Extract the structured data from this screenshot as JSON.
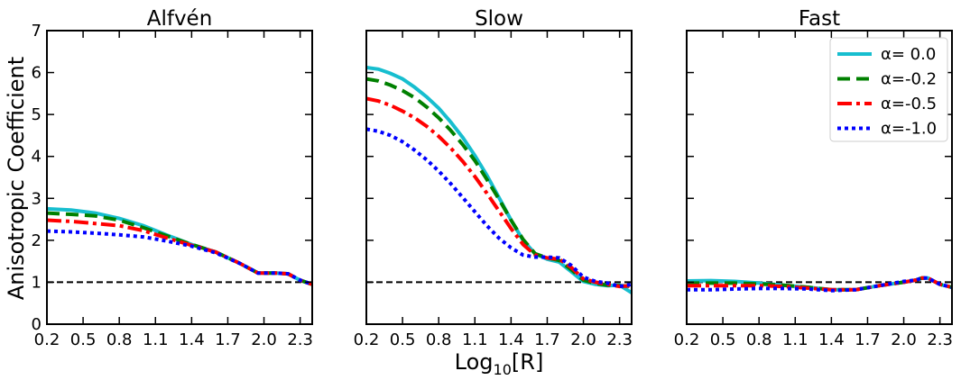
{
  "chart_data": {
    "type": "line",
    "ylabel": "Anisotropic Coefficient",
    "xlabel_base": "Log",
    "xlabel_sub": "10",
    "xlabel_rest": "[R]",
    "xlim": [
      0.2,
      2.4
    ],
    "ylim": [
      0,
      7
    ],
    "xticks": [
      0.2,
      0.5,
      0.8,
      1.1,
      1.4,
      1.7,
      2.0,
      2.3
    ],
    "xtick_labels": [
      "0.2",
      "0.5",
      "0.8",
      "1.1",
      "1.4",
      "1.7",
      "2.0",
      "2.3"
    ],
    "yticks": [
      0,
      1,
      2,
      3,
      4,
      5,
      6,
      7
    ],
    "ytick_labels": [
      "0",
      "1",
      "2",
      "3",
      "4",
      "5",
      "6",
      "7"
    ],
    "reference_line": 1,
    "legend_position": "top-right of Fast panel",
    "series_styles": [
      {
        "color": "#17becf",
        "dash": "none",
        "label": "α= 0.0"
      },
      {
        "color": "#008000",
        "dash": "14,7",
        "label": "α=-0.2"
      },
      {
        "color": "#ff0000",
        "dash": "16,5,4,5",
        "label": "α=-0.5"
      },
      {
        "color": "#0000ff",
        "dash": "4,4",
        "label": "α=-1.0"
      }
    ],
    "panels": [
      {
        "title": "Alfvén",
        "series": [
          {
            "x": [
              0.2,
              0.4,
              0.6,
              0.8,
              1.0,
              1.2,
              1.4,
              1.6,
              1.8,
              1.95,
              2.1,
              2.2,
              2.3,
              2.4
            ],
            "y": [
              2.75,
              2.72,
              2.65,
              2.52,
              2.35,
              2.12,
              1.9,
              1.72,
              1.45,
              1.22,
              1.22,
              1.2,
              1.05,
              0.95
            ]
          },
          {
            "x": [
              0.2,
              0.4,
              0.6,
              0.8,
              1.0,
              1.2,
              1.4,
              1.6,
              1.8,
              1.95,
              2.1,
              2.2,
              2.3,
              2.4
            ],
            "y": [
              2.65,
              2.62,
              2.58,
              2.48,
              2.3,
              2.1,
              1.9,
              1.72,
              1.45,
              1.22,
              1.22,
              1.2,
              1.05,
              0.95
            ]
          },
          {
            "x": [
              0.2,
              0.4,
              0.6,
              0.8,
              1.0,
              1.2,
              1.4,
              1.6,
              1.8,
              1.95,
              2.1,
              2.2,
              2.3,
              2.4
            ],
            "y": [
              2.48,
              2.45,
              2.4,
              2.35,
              2.23,
              2.05,
              1.88,
              1.72,
              1.45,
              1.22,
              1.22,
              1.2,
              1.05,
              0.95
            ]
          },
          {
            "x": [
              0.2,
              0.4,
              0.6,
              0.8,
              1.0,
              1.2,
              1.4,
              1.6,
              1.8,
              1.95,
              2.1,
              2.2,
              2.3,
              2.4
            ],
            "y": [
              2.22,
              2.2,
              2.17,
              2.13,
              2.08,
              1.98,
              1.86,
              1.7,
              1.45,
              1.22,
              1.22,
              1.2,
              1.05,
              0.95
            ]
          }
        ]
      },
      {
        "title": "Slow",
        "series": [
          {
            "x": [
              0.2,
              0.3,
              0.4,
              0.5,
              0.6,
              0.7,
              0.8,
              0.9,
              1.0,
              1.1,
              1.2,
              1.3,
              1.4,
              1.5,
              1.6,
              1.7,
              1.8,
              1.9,
              2.0,
              2.1,
              2.2,
              2.3,
              2.4
            ],
            "y": [
              6.12,
              6.08,
              5.98,
              5.85,
              5.65,
              5.42,
              5.15,
              4.82,
              4.45,
              4.02,
              3.55,
              3.02,
              2.48,
              2.0,
              1.68,
              1.55,
              1.48,
              1.25,
              1.02,
              0.95,
              0.92,
              0.93,
              0.75
            ]
          },
          {
            "x": [
              0.2,
              0.3,
              0.4,
              0.5,
              0.6,
              0.7,
              0.8,
              0.9,
              1.0,
              1.1,
              1.2,
              1.3,
              1.4,
              1.5,
              1.6,
              1.7,
              1.8,
              1.9,
              2.0,
              2.1,
              2.2,
              2.3,
              2.4
            ],
            "y": [
              5.85,
              5.8,
              5.7,
              5.57,
              5.4,
              5.18,
              4.92,
              4.62,
              4.28,
              3.9,
              3.45,
              2.98,
              2.48,
              2.02,
              1.68,
              1.58,
              1.52,
              1.3,
              1.05,
              0.97,
              0.93,
              0.92,
              0.9
            ]
          },
          {
            "x": [
              0.2,
              0.3,
              0.4,
              0.5,
              0.6,
              0.7,
              0.8,
              0.9,
              1.0,
              1.1,
              1.2,
              1.3,
              1.4,
              1.5,
              1.6,
              1.7,
              1.8,
              1.9,
              2.0,
              2.1,
              2.2,
              2.3,
              2.4
            ],
            "y": [
              5.38,
              5.32,
              5.22,
              5.08,
              4.92,
              4.72,
              4.48,
              4.2,
              3.88,
              3.52,
              3.12,
              2.7,
              2.28,
              1.9,
              1.65,
              1.58,
              1.55,
              1.35,
              1.08,
              1.0,
              0.95,
              0.9,
              0.92
            ]
          },
          {
            "x": [
              0.2,
              0.3,
              0.4,
              0.5,
              0.6,
              0.7,
              0.8,
              0.9,
              1.0,
              1.1,
              1.2,
              1.3,
              1.4,
              1.5,
              1.6,
              1.7,
              1.8,
              1.9,
              2.0,
              2.1,
              2.2,
              2.3,
              2.4
            ],
            "y": [
              4.65,
              4.6,
              4.5,
              4.35,
              4.15,
              3.92,
              3.65,
              3.35,
              3.02,
              2.68,
              2.35,
              2.05,
              1.82,
              1.65,
              1.6,
              1.6,
              1.58,
              1.4,
              1.12,
              1.02,
              0.98,
              0.9,
              0.95
            ]
          }
        ]
      },
      {
        "title": "Fast",
        "series": [
          {
            "x": [
              0.2,
              0.4,
              0.6,
              0.8,
              1.0,
              1.2,
              1.4,
              1.6,
              1.8,
              2.0,
              2.1,
              2.15,
              2.2,
              2.3,
              2.4
            ],
            "y": [
              1.03,
              1.04,
              1.02,
              0.98,
              0.93,
              0.88,
              0.82,
              0.82,
              0.92,
              1.0,
              1.05,
              1.1,
              1.1,
              0.95,
              0.88
            ]
          },
          {
            "x": [
              0.2,
              0.4,
              0.6,
              0.8,
              1.0,
              1.2,
              1.4,
              1.6,
              1.8,
              2.0,
              2.1,
              2.15,
              2.2,
              2.3,
              2.4
            ],
            "y": [
              0.98,
              0.98,
              0.98,
              0.96,
              0.93,
              0.88,
              0.82,
              0.82,
              0.92,
              1.0,
              1.05,
              1.1,
              1.1,
              0.95,
              0.88
            ]
          },
          {
            "x": [
              0.2,
              0.4,
              0.6,
              0.8,
              1.0,
              1.2,
              1.4,
              1.6,
              1.8,
              2.0,
              2.1,
              2.15,
              2.2,
              2.3,
              2.4
            ],
            "y": [
              0.92,
              0.92,
              0.92,
              0.92,
              0.9,
              0.86,
              0.82,
              0.82,
              0.92,
              1.0,
              1.05,
              1.1,
              1.1,
              0.95,
              0.88
            ]
          },
          {
            "x": [
              0.2,
              0.4,
              0.6,
              0.8,
              1.0,
              1.2,
              1.4,
              1.6,
              1.8,
              2.0,
              2.1,
              2.15,
              2.2,
              2.3,
              2.4
            ],
            "y": [
              0.82,
              0.82,
              0.84,
              0.85,
              0.85,
              0.84,
              0.8,
              0.82,
              0.92,
              1.02,
              1.05,
              1.1,
              1.1,
              0.95,
              0.88
            ]
          }
        ]
      }
    ]
  }
}
